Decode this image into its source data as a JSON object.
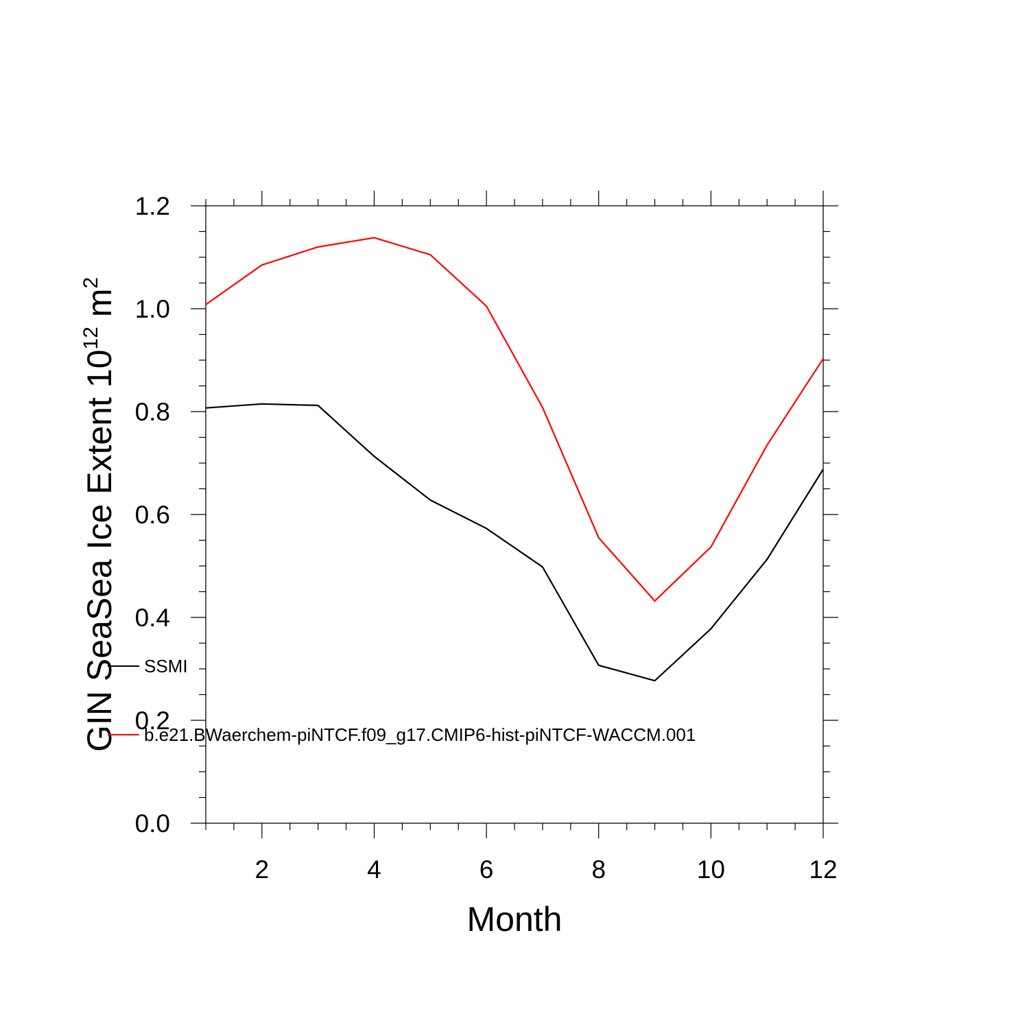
{
  "chart_data": {
    "type": "line",
    "title": "",
    "xlabel": "Month",
    "ylabel": {
      "base": "GIN SeaSea Ice Extent 10",
      "exponent": "12",
      "unit": " m",
      "unit_exponent": "2"
    },
    "xlim": [
      1,
      12
    ],
    "ylim": [
      0.0,
      1.2
    ],
    "x_ticks": [
      2,
      4,
      6,
      8,
      10,
      12
    ],
    "x_tick_labels": [
      "2",
      "4",
      "6",
      "8",
      "10",
      "12"
    ],
    "y_ticks": [
      0.0,
      0.2,
      0.4,
      0.6,
      0.8,
      1.0,
      1.2
    ],
    "y_tick_labels": [
      "0.0",
      "0.2",
      "0.4",
      "0.6",
      "0.8",
      "1.0",
      "1.2"
    ],
    "grid": false,
    "legend_position": "lower-left",
    "x": [
      1,
      2,
      3,
      4,
      5,
      6,
      7,
      8,
      9,
      10,
      11,
      12
    ],
    "series": [
      {
        "name": "SSMI",
        "color": "#000000",
        "values": [
          0.807,
          0.815,
          0.812,
          0.713,
          0.628,
          0.573,
          0.498,
          0.307,
          0.277,
          0.378,
          0.513,
          0.688
        ]
      },
      {
        "name": "b.e21.BWaerchem-piNTCF.f09_g17.CMIP6-hist-piNTCF-WACCM.001",
        "color": "#ff0000",
        "values": [
          1.008,
          1.085,
          1.12,
          1.138,
          1.105,
          1.005,
          0.808,
          0.555,
          0.432,
          0.537,
          0.735,
          0.903
        ]
      }
    ]
  }
}
